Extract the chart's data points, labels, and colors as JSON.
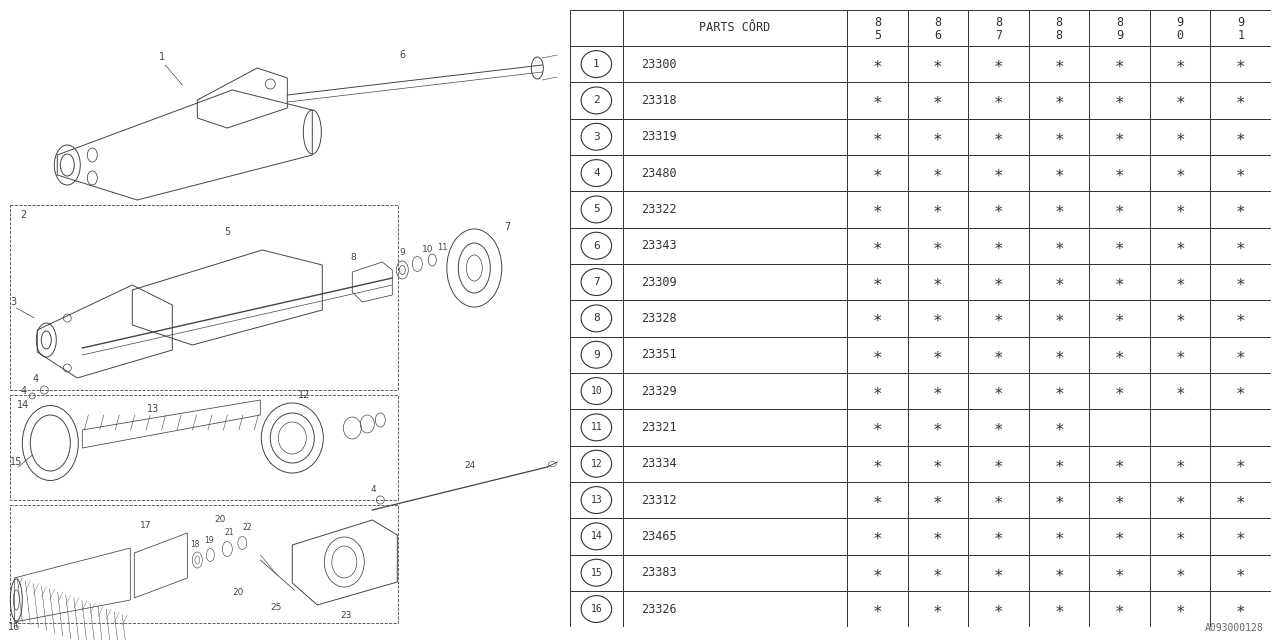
{
  "bg_color": "#ffffff",
  "parts": [
    {
      "num": 1,
      "code": "23300",
      "marks": [
        1,
        1,
        1,
        1,
        1,
        1,
        1
      ]
    },
    {
      "num": 2,
      "code": "23318",
      "marks": [
        1,
        1,
        1,
        1,
        1,
        1,
        1
      ]
    },
    {
      "num": 3,
      "code": "23319",
      "marks": [
        1,
        1,
        1,
        1,
        1,
        1,
        1
      ]
    },
    {
      "num": 4,
      "code": "23480",
      "marks": [
        1,
        1,
        1,
        1,
        1,
        1,
        1
      ]
    },
    {
      "num": 5,
      "code": "23322",
      "marks": [
        1,
        1,
        1,
        1,
        1,
        1,
        1
      ]
    },
    {
      "num": 6,
      "code": "23343",
      "marks": [
        1,
        1,
        1,
        1,
        1,
        1,
        1
      ]
    },
    {
      "num": 7,
      "code": "23309",
      "marks": [
        1,
        1,
        1,
        1,
        1,
        1,
        1
      ]
    },
    {
      "num": 8,
      "code": "23328",
      "marks": [
        1,
        1,
        1,
        1,
        1,
        1,
        1
      ]
    },
    {
      "num": 9,
      "code": "23351",
      "marks": [
        1,
        1,
        1,
        1,
        1,
        1,
        1
      ]
    },
    {
      "num": 10,
      "code": "23329",
      "marks": [
        1,
        1,
        1,
        1,
        1,
        1,
        1
      ]
    },
    {
      "num": 11,
      "code": "23321",
      "marks": [
        1,
        1,
        1,
        1,
        0,
        0,
        0
      ]
    },
    {
      "num": 12,
      "code": "23334",
      "marks": [
        1,
        1,
        1,
        1,
        1,
        1,
        1
      ]
    },
    {
      "num": 13,
      "code": "23312",
      "marks": [
        1,
        1,
        1,
        1,
        1,
        1,
        1
      ]
    },
    {
      "num": 14,
      "code": "23465",
      "marks": [
        1,
        1,
        1,
        1,
        1,
        1,
        1
      ]
    },
    {
      "num": 15,
      "code": "23383",
      "marks": [
        1,
        1,
        1,
        1,
        1,
        1,
        1
      ]
    },
    {
      "num": 16,
      "code": "23326",
      "marks": [
        1,
        1,
        1,
        1,
        1,
        1,
        1
      ]
    }
  ],
  "year_labels": [
    [
      "8",
      "5"
    ],
    [
      "8",
      "6"
    ],
    [
      "8",
      "7"
    ],
    [
      "8",
      "8"
    ],
    [
      "8",
      "9"
    ],
    [
      "9",
      "0"
    ],
    [
      "9",
      "1"
    ]
  ],
  "header_text": "PARTS CÔRD",
  "watermark": "A093000128",
  "lc": "#444444",
  "lc_light": "#777777"
}
